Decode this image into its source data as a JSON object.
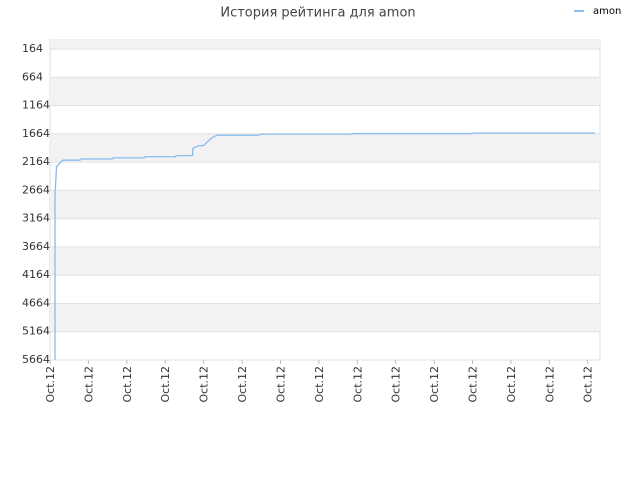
{
  "chart_data": {
    "type": "line",
    "title": "История рейтинга для amon",
    "x": [
      0.13,
      0.13,
      0.17,
      0.3,
      0.34,
      0.78,
      0.8,
      1.62,
      1.64,
      2.45,
      2.47,
      3.26,
      3.28,
      3.71,
      3.72,
      3.85,
      4.0,
      4.2,
      4.34,
      5.44,
      5.47,
      7.85,
      7.88,
      10.99,
      11.02,
      14.19
    ],
    "series": [
      {
        "name": "amon",
        "color": "#88bbee",
        "values": [
          5664,
          2750,
          2250,
          2150,
          2130,
          2130,
          2110,
          2110,
          2090,
          2090,
          2070,
          2070,
          2050,
          2050,
          1920,
          1880,
          1870,
          1740,
          1690,
          1690,
          1670,
          1670,
          1660,
          1660,
          1650,
          1650
        ]
      }
    ],
    "xlim": [
      0,
      14.32
    ],
    "xticks": [
      {
        "value": 0,
        "label": "Oct.12"
      },
      {
        "value": 1,
        "label": "Oct.12"
      },
      {
        "value": 2,
        "label": "Oct.12"
      },
      {
        "value": 3,
        "label": "Oct.12"
      },
      {
        "value": 4,
        "label": "Oct.12"
      },
      {
        "value": 5,
        "label": "Oct.12"
      },
      {
        "value": 6,
        "label": "Oct.12"
      },
      {
        "value": 7,
        "label": "Oct.12"
      },
      {
        "value": 8,
        "label": "Oct.12"
      },
      {
        "value": 9,
        "label": "Oct.12"
      },
      {
        "value": 10,
        "label": "Oct.12"
      },
      {
        "value": 11,
        "label": "Oct.12"
      },
      {
        "value": 12,
        "label": "Oct.12"
      },
      {
        "value": 13,
        "label": "Oct.12"
      },
      {
        "value": 14,
        "label": "Oct.12"
      }
    ],
    "ylim": [
      5664,
      5
    ],
    "yticks": [
      164,
      664,
      1164,
      1664,
      2164,
      2664,
      3164,
      3664,
      4164,
      4664,
      5164,
      5664
    ],
    "grid": true,
    "legend": "top-right"
  }
}
